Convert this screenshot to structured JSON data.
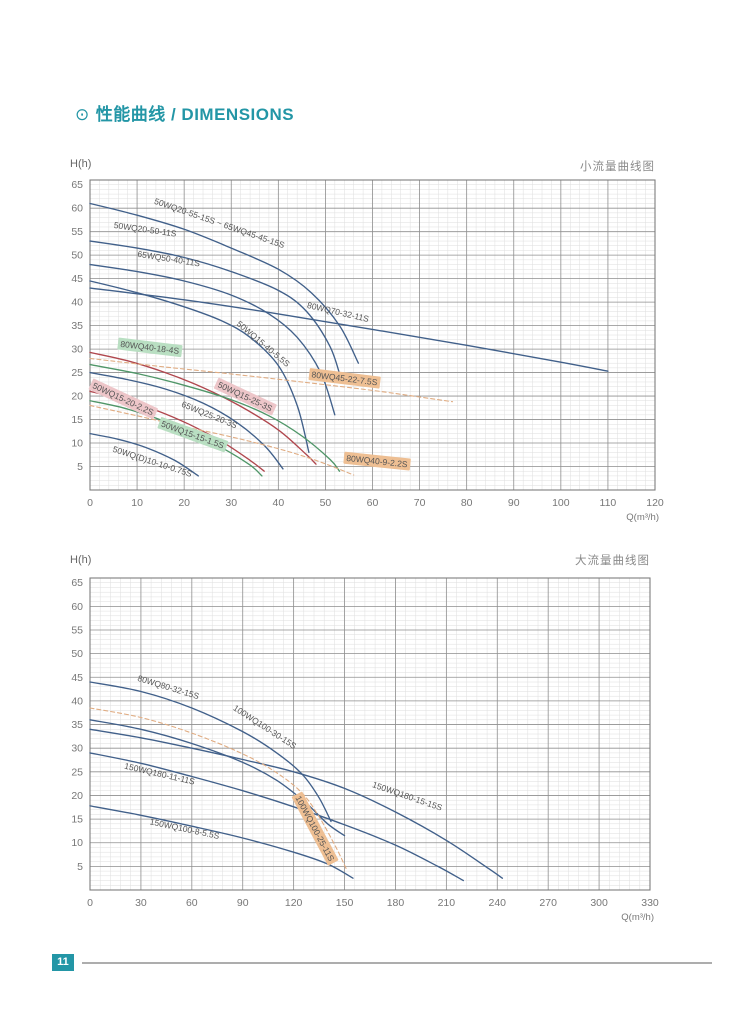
{
  "page": {
    "title_icon": "⊙",
    "title": "性能曲线 / DIMENSIONS",
    "page_number": "11",
    "accent_color": "#2396a6"
  },
  "colors": {
    "accent": "#2396a6",
    "grid_minor": "#dedede",
    "grid_major": "#909090",
    "plot_border": "#7d7d7d",
    "tick_text": "#777777",
    "curve_navy": "#41608a",
    "curve_red": "#b0474e",
    "curve_green": "#4f9668",
    "curve_orange": "#e0ac82",
    "label_text": "#555555",
    "label_bg_green": "#b9dfc2",
    "label_bg_pink": "#edc6c9",
    "label_bg_orange": "#eebf93"
  },
  "chart_data": [
    {
      "type": "line",
      "title": "小流量曲线图",
      "ylabel": "H(h)",
      "x_unit": "Q(m³/h)",
      "xlim": [
        0,
        120
      ],
      "ylim": [
        0,
        66
      ],
      "x_major": 10,
      "x_minor": 2,
      "y_major": 5,
      "y_minor": 1,
      "x_ticks": [
        0,
        10,
        20,
        30,
        40,
        50,
        60,
        70,
        80,
        90,
        100,
        110,
        120
      ],
      "y_ticks": [
        5,
        10,
        15,
        20,
        25,
        30,
        35,
        40,
        45,
        50,
        55,
        60,
        65
      ],
      "grid": true,
      "legend": "labels-on-curves",
      "series": [
        {
          "name": "50WQ20-55-15S ~ 65WQ45-45-15S",
          "color": "#41608a",
          "dash": false,
          "points": [
            [
              0,
              61
            ],
            [
              10,
              58.5
            ],
            [
              20,
              55.5
            ],
            [
              30,
              51.5
            ],
            [
              40,
              47
            ],
            [
              47,
              42
            ],
            [
              53,
              35
            ],
            [
              57,
              27
            ]
          ],
          "label": {
            "q": 13.5,
            "h": 61,
            "rot": 19,
            "bg": null
          }
        },
        {
          "name": "50WQ20-50-11S",
          "color": "#41608a",
          "dash": false,
          "points": [
            [
              0,
              53
            ],
            [
              10,
              51.5
            ],
            [
              20,
              49.5
            ],
            [
              30,
              46.5
            ],
            [
              40,
              42.5
            ],
            [
              46,
              38
            ],
            [
              51,
              30.5
            ],
            [
              53.5,
              23
            ]
          ],
          "label": {
            "q": 5,
            "h": 55.8,
            "rot": 8,
            "bg": null
          }
        },
        {
          "name": "65WQ50-40-11S",
          "color": "#41608a",
          "dash": false,
          "points": [
            [
              0,
              48
            ],
            [
              10,
              46.5
            ],
            [
              20,
              44.5
            ],
            [
              30,
              41.5
            ],
            [
              38,
              37.5
            ],
            [
              44,
              32.5
            ],
            [
              49,
              25
            ],
            [
              52,
              16
            ]
          ],
          "label": {
            "q": 10,
            "h": 49.7,
            "rot": 9,
            "bg": null
          }
        },
        {
          "name": "80WQ70-32-11S",
          "color": "#41608a",
          "dash": false,
          "points": [
            [
              0,
              43
            ],
            [
              20,
              40.5
            ],
            [
              40,
              37.5
            ],
            [
              60,
              34.2
            ],
            [
              80,
              30.8
            ],
            [
              100,
              27.2
            ],
            [
              110,
              25.3
            ]
          ],
          "label": {
            "q": 46,
            "h": 38.8,
            "rot": 13,
            "bg": null
          }
        },
        {
          "name": "50WQ15-40-5.5S",
          "color": "#41608a",
          "dash": false,
          "points": [
            [
              0,
              44.5
            ],
            [
              10,
              42
            ],
            [
              20,
              39
            ],
            [
              28,
              36
            ],
            [
              34,
              32.5
            ],
            [
              40,
              26.5
            ],
            [
              44,
              18
            ],
            [
              46.5,
              8
            ]
          ],
          "label": {
            "q": 31,
            "h": 35.2,
            "rot": 40,
            "bg": null
          }
        },
        {
          "name": "65WQ25-20-3S",
          "color": "#41608a",
          "dash": false,
          "points": [
            [
              0,
              25
            ],
            [
              8,
              23.5
            ],
            [
              16,
              21.5
            ],
            [
              24,
              18.5
            ],
            [
              31,
              14.5
            ],
            [
              37,
              9.5
            ],
            [
              41,
              4.5
            ]
          ],
          "label": {
            "q": 19.3,
            "h": 17.8,
            "rot": 22,
            "bg": null
          }
        },
        {
          "name": "50WQ(D)10-10-0.75S",
          "color": "#41608a",
          "dash": false,
          "points": [
            [
              0,
              12
            ],
            [
              6,
              10.8
            ],
            [
              12,
              9
            ],
            [
              18,
              6.3
            ],
            [
              23,
              3
            ]
          ],
          "label": {
            "q": 4.7,
            "h": 8.2,
            "rot": 18,
            "bg": null
          }
        },
        {
          "name": "50WQ15-25-3S",
          "color": "#b0474e",
          "dash": false,
          "points": [
            [
              0,
              29.3
            ],
            [
              8,
              27.5
            ],
            [
              16,
              25
            ],
            [
              24,
              21.8
            ],
            [
              32,
              17.8
            ],
            [
              40,
              12.8
            ],
            [
              46,
              7.5
            ],
            [
              48,
              5.5
            ]
          ],
          "label": {
            "q": 27,
            "h": 22,
            "rot": 25,
            "bg": "#edc6c9"
          }
        },
        {
          "name": "50WQ15-20-2.2S",
          "color": "#b0474e",
          "dash": false,
          "points": [
            [
              0,
              21
            ],
            [
              7,
              19.3
            ],
            [
              14,
              17
            ],
            [
              21,
              14
            ],
            [
              28,
              10.3
            ],
            [
              34,
              6.3
            ],
            [
              37,
              4
            ]
          ],
          "label": {
            "q": 0.4,
            "h": 21.8,
            "rot": 25,
            "bg": "#edc6c9"
          }
        },
        {
          "name": "80WQ40-18-4S",
          "color": "#4f9668",
          "dash": false,
          "points": [
            [
              0,
              26.7
            ],
            [
              10,
              24.8
            ],
            [
              20,
              22.3
            ],
            [
              30,
              19.2
            ],
            [
              38,
              15.8
            ],
            [
              45,
              11.5
            ],
            [
              51,
              6.5
            ],
            [
              53,
              4
            ]
          ],
          "label": {
            "q": 6.4,
            "h": 30.5,
            "rot": 7,
            "bg": "#b9dfc2"
          }
        },
        {
          "name": "50WQ15-15-1.5S",
          "color": "#4f9668",
          "dash": false,
          "points": [
            [
              0,
              19
            ],
            [
              7,
              17.5
            ],
            [
              14,
              15.3
            ],
            [
              21,
              12.5
            ],
            [
              28,
              9
            ],
            [
              34,
              5.3
            ],
            [
              36.5,
              3
            ]
          ],
          "label": {
            "q": 15,
            "h": 13.6,
            "rot": 20,
            "bg": "#b9dfc2"
          }
        },
        {
          "name": "80WQ45-22-7.5S",
          "color": "#e0ac82",
          "dash": true,
          "points": [
            [
              0,
              28
            ],
            [
              15,
              26.3
            ],
            [
              30,
              24.7
            ],
            [
              45,
              23
            ],
            [
              60,
              21.2
            ],
            [
              70,
              19.8
            ],
            [
              77,
              18.8
            ]
          ],
          "label": {
            "q": 47,
            "h": 24,
            "rot": 7,
            "bg": "#eebf93"
          }
        },
        {
          "name": "80WQ40-9-2.2S",
          "color": "#e0ac82",
          "dash": true,
          "points": [
            [
              0,
              18
            ],
            [
              10,
              15.8
            ],
            [
              20,
              13.5
            ],
            [
              30,
              11.3
            ],
            [
              40,
              8.8
            ],
            [
              48,
              6.3
            ],
            [
              56,
              3.2
            ]
          ],
          "label": {
            "q": 54.4,
            "h": 6.2,
            "rot": 6,
            "bg": "#eebf93"
          }
        }
      ]
    },
    {
      "type": "line",
      "title": "大流量曲线图",
      "ylabel": "H(h)",
      "x_unit": "Q(m³/h)",
      "xlim": [
        0,
        330
      ],
      "ylim": [
        0,
        66
      ],
      "x_major": 30,
      "x_minor": 6,
      "y_major": 5,
      "y_minor": 1,
      "x_ticks": [
        0,
        30,
        60,
        90,
        120,
        150,
        180,
        210,
        240,
        270,
        300,
        330
      ],
      "y_ticks": [
        5,
        10,
        15,
        20,
        25,
        30,
        35,
        40,
        45,
        50,
        55,
        60,
        65
      ],
      "grid": true,
      "legend": "labels-on-curves",
      "series": [
        {
          "name": "80WQ80-32-15S",
          "color": "#41608a",
          "dash": false,
          "points": [
            [
              0,
              44
            ],
            [
              30,
              42
            ],
            [
              60,
              38.5
            ],
            [
              90,
              33.5
            ],
            [
              110,
              29
            ],
            [
              125,
              24.5
            ],
            [
              135,
              19.5
            ],
            [
              142,
              14.5
            ]
          ],
          "label": {
            "q": 27.7,
            "h": 44.3,
            "rot": 17,
            "bg": null
          }
        },
        {
          "name": "100WQ100-30-15S",
          "color": "#41608a",
          "dash": false,
          "points": [
            [
              0,
              36
            ],
            [
              30,
              34
            ],
            [
              60,
              31
            ],
            [
              90,
              27
            ],
            [
              110,
              23.2
            ],
            [
              127,
              18.5
            ],
            [
              140,
              14
            ],
            [
              150,
              11.5
            ]
          ],
          "label": {
            "q": 84,
            "h": 38.2,
            "rot": 33,
            "bg": null
          }
        },
        {
          "name": "150WQ180-11-11S",
          "color": "#41608a",
          "dash": false,
          "points": [
            [
              0,
              29
            ],
            [
              30,
              26.8
            ],
            [
              60,
              24
            ],
            [
              90,
              21
            ],
            [
              120,
              17.6
            ],
            [
              150,
              13.8
            ],
            [
              180,
              9.5
            ],
            [
              205,
              5
            ],
            [
              220,
              2
            ]
          ],
          "label": {
            "q": 20,
            "h": 25.7,
            "rot": 13,
            "bg": null
          }
        },
        {
          "name": "150WQ180-15-15S",
          "color": "#41608a",
          "dash": false,
          "points": [
            [
              0,
              34
            ],
            [
              30,
              32.2
            ],
            [
              60,
              30
            ],
            [
              90,
              27.6
            ],
            [
              120,
              25
            ],
            [
              150,
              21.5
            ],
            [
              180,
              16.5
            ],
            [
              210,
              10.5
            ],
            [
              235,
              4.5
            ],
            [
              243,
              2.5
            ]
          ],
          "label": {
            "q": 166,
            "h": 21.8,
            "rot": 19,
            "bg": null
          }
        },
        {
          "name": "150WQ100-8-5.5S",
          "color": "#41608a",
          "dash": false,
          "points": [
            [
              0,
              17.8
            ],
            [
              30,
              15.8
            ],
            [
              60,
              13.5
            ],
            [
              90,
              11
            ],
            [
              120,
              8
            ],
            [
              140,
              5.5
            ],
            [
              155,
              2.5
            ]
          ],
          "label": {
            "q": 35,
            "h": 13.9,
            "rot": 12,
            "bg": null
          }
        },
        {
          "name": "100WQ100-25-11S",
          "color": "#e0ac82",
          "dash": true,
          "points": [
            [
              0,
              38.5
            ],
            [
              30,
              36.5
            ],
            [
              60,
              33.2
            ],
            [
              90,
              28.8
            ],
            [
              110,
              24.8
            ],
            [
              125,
              20.5
            ],
            [
              135,
              15.5
            ],
            [
              145,
              9
            ],
            [
              151,
              4.5
            ]
          ],
          "label": {
            "q": 121,
            "h": 19.5,
            "rot": 62,
            "bg": "#eebf93"
          }
        }
      ]
    }
  ]
}
